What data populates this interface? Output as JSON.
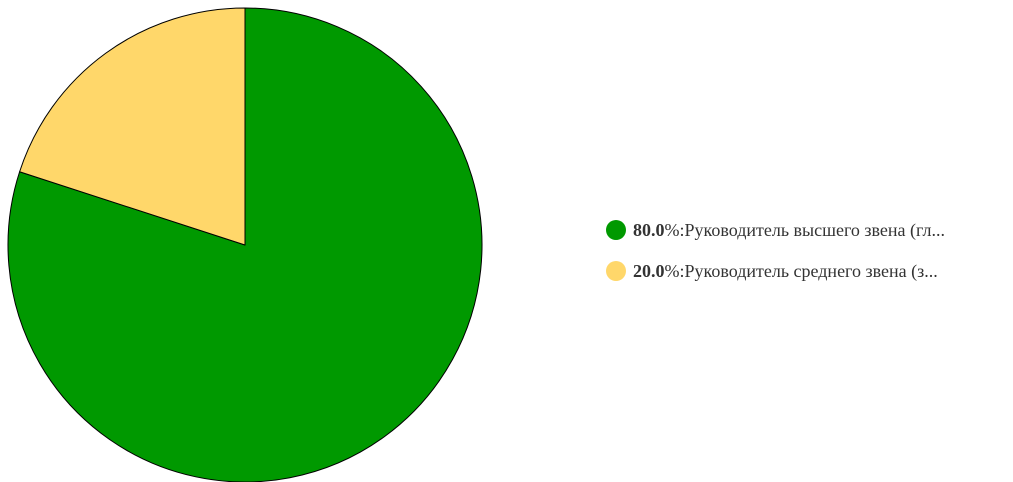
{
  "chart_data": {
    "type": "pie",
    "slices": [
      {
        "value": 80.0,
        "percent_label": "80.0",
        "suffix": "%: ",
        "label": "Руководитель высшего звена (гл...",
        "color": "#009900"
      },
      {
        "value": 20.0,
        "percent_label": "20.0",
        "suffix": "%: ",
        "label": "Руководитель среднего звена (з...",
        "color": "#ffd76a"
      }
    ],
    "start_angle": "12 o'clock",
    "direction": "clockwise",
    "legend_position": "right"
  }
}
